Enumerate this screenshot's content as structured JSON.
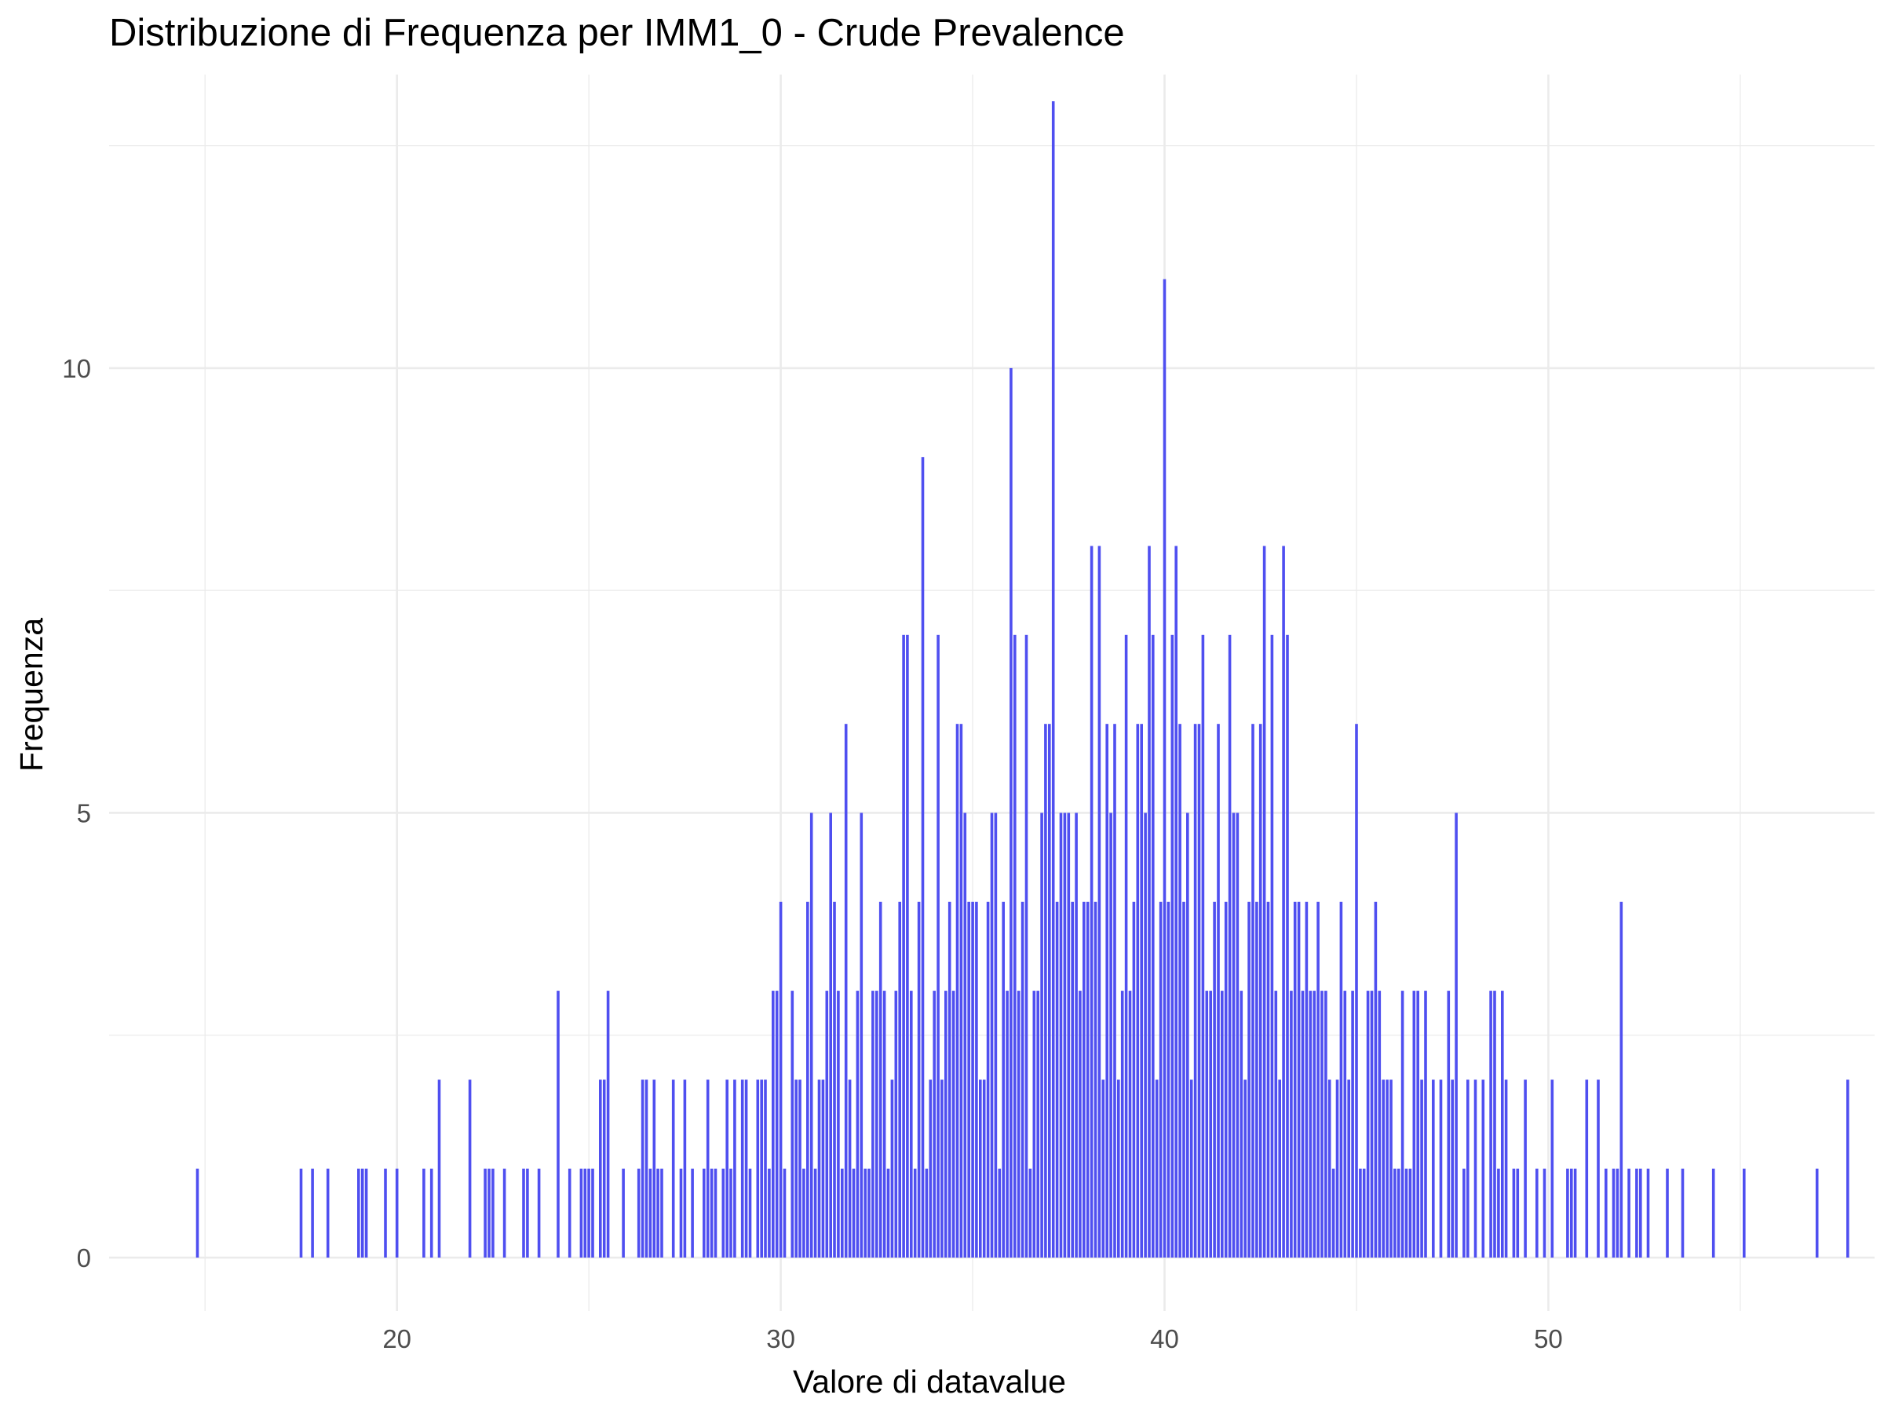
{
  "chart_data": {
    "type": "bar",
    "title": "Distribuzione di Frequenza per IMM1_0 - Crude Prevalence",
    "xlabel": "Valore di datavalue",
    "ylabel": "Frequenza",
    "xlim": [
      12.5,
      58.5
    ],
    "ylim": [
      -0.6,
      13.3
    ],
    "xticks": [
      20,
      30,
      40,
      50
    ],
    "yticks": [
      0,
      5,
      10
    ],
    "grid": true,
    "legend": "none",
    "bar_color": "#4f4ff0",
    "grid_color": "#ebebeb",
    "points": [
      [
        14.8,
        1
      ],
      [
        17.5,
        1
      ],
      [
        17.8,
        1
      ],
      [
        18.2,
        1
      ],
      [
        19.0,
        1
      ],
      [
        19.1,
        1
      ],
      [
        19.2,
        1
      ],
      [
        19.7,
        1
      ],
      [
        20.0,
        1
      ],
      [
        20.7,
        1
      ],
      [
        20.9,
        1
      ],
      [
        21.1,
        2
      ],
      [
        21.9,
        2
      ],
      [
        22.3,
        1
      ],
      [
        22.4,
        1
      ],
      [
        22.5,
        1
      ],
      [
        22.8,
        1
      ],
      [
        23.3,
        1
      ],
      [
        23.4,
        1
      ],
      [
        23.7,
        1
      ],
      [
        24.2,
        3
      ],
      [
        24.5,
        1
      ],
      [
        24.8,
        1
      ],
      [
        24.9,
        1
      ],
      [
        25.0,
        1
      ],
      [
        25.1,
        1
      ],
      [
        25.3,
        2
      ],
      [
        25.4,
        2
      ],
      [
        25.5,
        3
      ],
      [
        25.9,
        1
      ],
      [
        26.3,
        1
      ],
      [
        26.4,
        2
      ],
      [
        26.5,
        2
      ],
      [
        26.6,
        1
      ],
      [
        26.7,
        2
      ],
      [
        26.8,
        1
      ],
      [
        26.9,
        1
      ],
      [
        27.2,
        2
      ],
      [
        27.4,
        1
      ],
      [
        27.5,
        2
      ],
      [
        27.7,
        1
      ],
      [
        28.0,
        1
      ],
      [
        28.1,
        2
      ],
      [
        28.2,
        1
      ],
      [
        28.3,
        1
      ],
      [
        28.5,
        1
      ],
      [
        28.6,
        2
      ],
      [
        28.7,
        1
      ],
      [
        28.8,
        2
      ],
      [
        29.0,
        2
      ],
      [
        29.1,
        2
      ],
      [
        29.2,
        1
      ],
      [
        29.4,
        2
      ],
      [
        29.5,
        2
      ],
      [
        29.6,
        2
      ],
      [
        29.7,
        1
      ],
      [
        29.8,
        3
      ],
      [
        29.9,
        3
      ],
      [
        30.0,
        4
      ],
      [
        30.1,
        1
      ],
      [
        30.3,
        3
      ],
      [
        30.4,
        2
      ],
      [
        30.5,
        2
      ],
      [
        30.6,
        1
      ],
      [
        30.7,
        4
      ],
      [
        30.8,
        5
      ],
      [
        30.9,
        1
      ],
      [
        31.0,
        2
      ],
      [
        31.1,
        2
      ],
      [
        31.2,
        3
      ],
      [
        31.3,
        5
      ],
      [
        31.4,
        4
      ],
      [
        31.5,
        3
      ],
      [
        31.6,
        1
      ],
      [
        31.7,
        6
      ],
      [
        31.8,
        2
      ],
      [
        31.9,
        1
      ],
      [
        32.0,
        3
      ],
      [
        32.1,
        5
      ],
      [
        32.2,
        1
      ],
      [
        32.3,
        1
      ],
      [
        32.4,
        3
      ],
      [
        32.5,
        3
      ],
      [
        32.6,
        4
      ],
      [
        32.7,
        3
      ],
      [
        32.8,
        1
      ],
      [
        32.9,
        2
      ],
      [
        33.0,
        3
      ],
      [
        33.1,
        4
      ],
      [
        33.2,
        7
      ],
      [
        33.3,
        7
      ],
      [
        33.4,
        3
      ],
      [
        33.5,
        1
      ],
      [
        33.6,
        4
      ],
      [
        33.7,
        9
      ],
      [
        33.8,
        1
      ],
      [
        33.9,
        2
      ],
      [
        34.0,
        3
      ],
      [
        34.1,
        7
      ],
      [
        34.2,
        2
      ],
      [
        34.3,
        3
      ],
      [
        34.4,
        4
      ],
      [
        34.5,
        3
      ],
      [
        34.6,
        6
      ],
      [
        34.7,
        6
      ],
      [
        34.8,
        5
      ],
      [
        34.9,
        4
      ],
      [
        35.0,
        4
      ],
      [
        35.1,
        4
      ],
      [
        35.2,
        2
      ],
      [
        35.3,
        2
      ],
      [
        35.4,
        4
      ],
      [
        35.5,
        5
      ],
      [
        35.6,
        5
      ],
      [
        35.7,
        1
      ],
      [
        35.8,
        4
      ],
      [
        35.9,
        3
      ],
      [
        36.0,
        10
      ],
      [
        36.1,
        7
      ],
      [
        36.2,
        3
      ],
      [
        36.3,
        4
      ],
      [
        36.4,
        7
      ],
      [
        36.5,
        1
      ],
      [
        36.6,
        3
      ],
      [
        36.7,
        3
      ],
      [
        36.8,
        5
      ],
      [
        36.9,
        6
      ],
      [
        37.0,
        6
      ],
      [
        37.1,
        13
      ],
      [
        37.2,
        4
      ],
      [
        37.3,
        5
      ],
      [
        37.4,
        5
      ],
      [
        37.5,
        5
      ],
      [
        37.6,
        4
      ],
      [
        37.7,
        5
      ],
      [
        37.8,
        3
      ],
      [
        37.9,
        4
      ],
      [
        38.0,
        4
      ],
      [
        38.1,
        8
      ],
      [
        38.2,
        4
      ],
      [
        38.3,
        8
      ],
      [
        38.4,
        2
      ],
      [
        38.5,
        6
      ],
      [
        38.6,
        5
      ],
      [
        38.7,
        6
      ],
      [
        38.8,
        2
      ],
      [
        38.9,
        3
      ],
      [
        39.0,
        7
      ],
      [
        39.1,
        3
      ],
      [
        39.2,
        4
      ],
      [
        39.3,
        6
      ],
      [
        39.4,
        6
      ],
      [
        39.5,
        5
      ],
      [
        39.6,
        8
      ],
      [
        39.7,
        7
      ],
      [
        39.8,
        2
      ],
      [
        39.9,
        4
      ],
      [
        40.0,
        11
      ],
      [
        40.1,
        4
      ],
      [
        40.2,
        7
      ],
      [
        40.3,
        8
      ],
      [
        40.4,
        6
      ],
      [
        40.5,
        4
      ],
      [
        40.6,
        5
      ],
      [
        40.7,
        2
      ],
      [
        40.8,
        6
      ],
      [
        40.9,
        6
      ],
      [
        41.0,
        7
      ],
      [
        41.1,
        3
      ],
      [
        41.2,
        3
      ],
      [
        41.3,
        4
      ],
      [
        41.4,
        6
      ],
      [
        41.5,
        3
      ],
      [
        41.6,
        4
      ],
      [
        41.7,
        7
      ],
      [
        41.8,
        5
      ],
      [
        41.9,
        5
      ],
      [
        42.0,
        3
      ],
      [
        42.1,
        2
      ],
      [
        42.2,
        4
      ],
      [
        42.3,
        6
      ],
      [
        42.4,
        4
      ],
      [
        42.5,
        6
      ],
      [
        42.6,
        8
      ],
      [
        42.7,
        4
      ],
      [
        42.8,
        7
      ],
      [
        42.9,
        3
      ],
      [
        43.0,
        2
      ],
      [
        43.1,
        8
      ],
      [
        43.2,
        7
      ],
      [
        43.3,
        3
      ],
      [
        43.4,
        4
      ],
      [
        43.5,
        4
      ],
      [
        43.6,
        3
      ],
      [
        43.7,
        4
      ],
      [
        43.8,
        3
      ],
      [
        43.9,
        3
      ],
      [
        44.0,
        4
      ],
      [
        44.1,
        3
      ],
      [
        44.2,
        3
      ],
      [
        44.3,
        2
      ],
      [
        44.4,
        1
      ],
      [
        44.5,
        2
      ],
      [
        44.6,
        4
      ],
      [
        44.7,
        3
      ],
      [
        44.8,
        2
      ],
      [
        44.9,
        3
      ],
      [
        45.0,
        6
      ],
      [
        45.1,
        1
      ],
      [
        45.2,
        1
      ],
      [
        45.3,
        3
      ],
      [
        45.4,
        3
      ],
      [
        45.5,
        4
      ],
      [
        45.6,
        3
      ],
      [
        45.7,
        2
      ],
      [
        45.8,
        2
      ],
      [
        45.9,
        2
      ],
      [
        46.0,
        1
      ],
      [
        46.1,
        1
      ],
      [
        46.2,
        3
      ],
      [
        46.3,
        1
      ],
      [
        46.4,
        1
      ],
      [
        46.5,
        3
      ],
      [
        46.6,
        3
      ],
      [
        46.7,
        2
      ],
      [
        46.8,
        3
      ],
      [
        47.0,
        2
      ],
      [
        47.2,
        2
      ],
      [
        47.4,
        3
      ],
      [
        47.5,
        2
      ],
      [
        47.6,
        5
      ],
      [
        47.8,
        1
      ],
      [
        47.9,
        2
      ],
      [
        48.1,
        2
      ],
      [
        48.3,
        2
      ],
      [
        48.5,
        3
      ],
      [
        48.6,
        3
      ],
      [
        48.7,
        1
      ],
      [
        48.8,
        3
      ],
      [
        48.9,
        2
      ],
      [
        49.1,
        1
      ],
      [
        49.2,
        1
      ],
      [
        49.4,
        2
      ],
      [
        49.7,
        1
      ],
      [
        49.9,
        1
      ],
      [
        50.1,
        2
      ],
      [
        50.5,
        1
      ],
      [
        50.6,
        1
      ],
      [
        50.7,
        1
      ],
      [
        51.0,
        2
      ],
      [
        51.3,
        2
      ],
      [
        51.5,
        1
      ],
      [
        51.7,
        1
      ],
      [
        51.8,
        1
      ],
      [
        51.9,
        4
      ],
      [
        52.1,
        1
      ],
      [
        52.3,
        1
      ],
      [
        52.4,
        1
      ],
      [
        52.6,
        1
      ],
      [
        53.1,
        1
      ],
      [
        53.5,
        1
      ],
      [
        54.3,
        1
      ],
      [
        55.1,
        1
      ],
      [
        57.0,
        1
      ],
      [
        57.8,
        2
      ]
    ]
  }
}
